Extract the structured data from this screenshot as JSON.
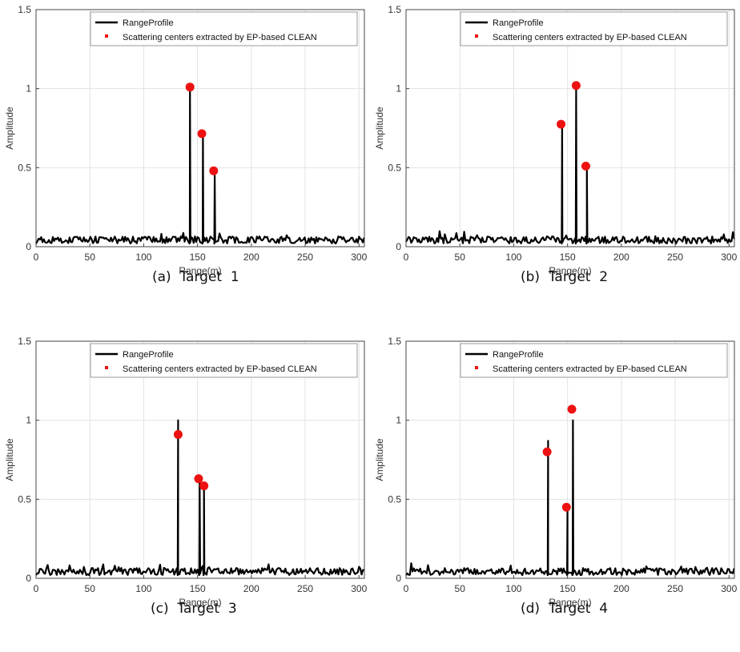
{
  "chart_data": [
    {
      "type": "line",
      "id": "target1",
      "caption": "(a)  Target  1",
      "xlabel": "Range(m)",
      "ylabel": "Amplitude",
      "xlim": [
        0,
        305
      ],
      "ylim": [
        0,
        1.5
      ],
      "xticks": [
        "0",
        "50",
        "100",
        "150",
        "200",
        "250",
        "300"
      ],
      "yticks": [
        "0",
        "0.5",
        "1",
        "1.5"
      ],
      "grid": true,
      "legend": [
        "RangeProfile",
        "Scattering centers extracted by EP-based CLEAN"
      ],
      "legend_position": "top",
      "peaks": [
        [
          143,
          1.0
        ],
        [
          155,
          0.71
        ],
        [
          166,
          0.45
        ]
      ],
      "scatter": [
        [
          143,
          1.01
        ],
        [
          154,
          0.715
        ],
        [
          165,
          0.48
        ]
      ]
    },
    {
      "type": "line",
      "id": "target2",
      "caption": "(b)  Target  2",
      "xlabel": "Range(m)",
      "ylabel": "Amplitude",
      "xlim": [
        0,
        305
      ],
      "ylim": [
        0,
        1.5
      ],
      "xticks": [
        "0",
        "50",
        "100",
        "150",
        "200",
        "250",
        "300"
      ],
      "yticks": [
        "0",
        "0.5",
        "1",
        "1.5"
      ],
      "grid": true,
      "legend": [
        "RangeProfile",
        "Scattering centers extracted by EP-based CLEAN"
      ],
      "legend_position": "top",
      "peaks": [
        [
          145,
          0.78
        ],
        [
          158,
          1.0
        ],
        [
          168,
          0.5
        ]
      ],
      "scatter": [
        [
          144,
          0.775
        ],
        [
          158,
          1.02
        ],
        [
          167,
          0.51
        ]
      ]
    },
    {
      "type": "line",
      "id": "target3",
      "caption": "(c)  Target  3",
      "xlabel": "Range(m)",
      "ylabel": "Amplitude",
      "xlim": [
        0,
        305
      ],
      "ylim": [
        0,
        1.5
      ],
      "xticks": [
        "0",
        "50",
        "100",
        "150",
        "200",
        "250",
        "300"
      ],
      "yticks": [
        "0",
        "0.5",
        "1",
        "1.5"
      ],
      "grid": true,
      "legend": [
        "RangeProfile",
        "Scattering centers extracted by EP-based CLEAN"
      ],
      "legend_position": "top",
      "peaks": [
        [
          132,
          1.0
        ],
        [
          152,
          0.62
        ],
        [
          156,
          0.58
        ]
      ],
      "scatter": [
        [
          132,
          0.91
        ],
        [
          151,
          0.63
        ],
        [
          156,
          0.585
        ]
      ]
    },
    {
      "type": "line",
      "id": "target4",
      "caption": "(d)  Target  4",
      "xlabel": "Range(m)",
      "ylabel": "Amplitude",
      "xlim": [
        0,
        305
      ],
      "ylim": [
        0,
        1.5
      ],
      "xticks": [
        "0",
        "50",
        "100",
        "150",
        "200",
        "250",
        "300"
      ],
      "yticks": [
        "0",
        "0.5",
        "1",
        "1.5"
      ],
      "grid": true,
      "legend": [
        "RangeProfile",
        "Scattering centers extracted by EP-based CLEAN"
      ],
      "legend_position": "top",
      "peaks": [
        [
          132,
          0.87
        ],
        [
          150,
          0.45
        ],
        [
          155,
          1.0
        ]
      ],
      "scatter": [
        [
          131,
          0.8
        ],
        [
          149,
          0.45
        ],
        [
          154,
          1.07
        ]
      ]
    }
  ],
  "colors": {
    "profile": "#000000",
    "scatter": "#ee1111",
    "grid": "#e3e3e3",
    "axis": "#444444"
  }
}
